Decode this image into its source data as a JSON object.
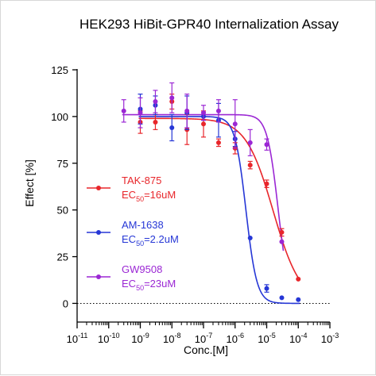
{
  "chart_data": {
    "type": "scatter",
    "title": "HEK293 HiBit-GPR40 Internalization Assay",
    "xlabel": "Conc.[M]",
    "ylabel": "Effect  [%]",
    "x_scale": "log",
    "xlim": [
      1e-11,
      0.001
    ],
    "ylim": [
      -10,
      125
    ],
    "y_ticks": [
      0,
      25,
      50,
      75,
      100,
      125
    ],
    "x_ticks": [
      {
        "base": "10",
        "exp": "-11"
      },
      {
        "base": "10",
        "exp": "-10"
      },
      {
        "base": "10",
        "exp": "-9"
      },
      {
        "base": "10",
        "exp": "-8"
      },
      {
        "base": "10",
        "exp": "-7"
      },
      {
        "base": "10",
        "exp": "-6"
      },
      {
        "base": "10",
        "exp": "-5"
      },
      {
        "base": "10",
        "exp": "-4"
      },
      {
        "base": "10",
        "exp": "-3"
      }
    ],
    "baseline": 0,
    "legend_position": "left",
    "series": [
      {
        "name": "TAK-875",
        "ec50_label": {
          "prefix": "EC",
          "sub": "50",
          "suffix": "=16uM"
        },
        "color": "#e8262b",
        "fit": {
          "top": 99,
          "bottom": 0,
          "ec50": 1.6e-05,
          "hill": 1.0
        },
        "points": [
          {
            "x": 1e-09,
            "y": 97,
            "err": 6
          },
          {
            "x": 3e-09,
            "y": 97,
            "err": 4
          },
          {
            "x": 1e-08,
            "y": 108,
            "err": 4
          },
          {
            "x": 3e-08,
            "y": 93,
            "err": 8
          },
          {
            "x": 1e-07,
            "y": 96,
            "err": 7
          },
          {
            "x": 3e-07,
            "y": 86,
            "err": 2
          },
          {
            "x": 1e-06,
            "y": 83,
            "err": 3
          },
          {
            "x": 3e-06,
            "y": 74,
            "err": 2
          },
          {
            "x": 1e-05,
            "y": 64,
            "err": 2
          },
          {
            "x": 3e-05,
            "y": 38,
            "err": 2
          },
          {
            "x": 0.0001,
            "y": 13,
            "err": 0
          }
        ]
      },
      {
        "name": "AM-1638",
        "ec50_label": {
          "prefix": "EC",
          "sub": "50",
          "suffix": "=2.2uM"
        },
        "color": "#2637d6",
        "fit": {
          "top": 100,
          "bottom": 0,
          "ec50": 2.2e-06,
          "hill": 2.5
        },
        "points": [
          {
            "x": 1e-09,
            "y": 104,
            "err": 8
          },
          {
            "x": 3e-09,
            "y": 106,
            "err": 5
          },
          {
            "x": 1e-08,
            "y": 94,
            "err": 7
          },
          {
            "x": 3e-08,
            "y": 102,
            "err": 9
          },
          {
            "x": 1e-07,
            "y": 100,
            "err": 2
          },
          {
            "x": 3e-07,
            "y": 98,
            "err": 9
          },
          {
            "x": 1e-06,
            "y": 88,
            "err": 4
          },
          {
            "x": 3e-06,
            "y": 35,
            "err": 0
          },
          {
            "x": 1e-05,
            "y": 8,
            "err": 2
          },
          {
            "x": 3e-05,
            "y": 3,
            "err": 0
          },
          {
            "x": 0.0001,
            "y": 2,
            "err": 0
          }
        ]
      },
      {
        "name": "GW9508",
        "ec50_label": {
          "prefix": "EC",
          "sub": "50",
          "suffix": "=23uM"
        },
        "color": "#9b27d4",
        "fit": {
          "top": 101,
          "bottom": 0,
          "ec50": 2.3e-05,
          "hill": 2.5
        },
        "points": [
          {
            "x": 3e-10,
            "y": 103,
            "err": 6
          },
          {
            "x": 1e-09,
            "y": 102,
            "err": 8
          },
          {
            "x": 3e-09,
            "y": 108,
            "err": 6
          },
          {
            "x": 1e-08,
            "y": 110,
            "err": 8
          },
          {
            "x": 3e-08,
            "y": 103,
            "err": 9
          },
          {
            "x": 1e-07,
            "y": 102,
            "err": 4
          },
          {
            "x": 3e-07,
            "y": 103,
            "err": 6
          },
          {
            "x": 1e-06,
            "y": 96,
            "err": 13
          },
          {
            "x": 3e-06,
            "y": 86,
            "err": 7
          },
          {
            "x": 1e-05,
            "y": 85,
            "err": 3
          },
          {
            "x": 3e-05,
            "y": 33,
            "err": 0
          }
        ]
      }
    ]
  }
}
